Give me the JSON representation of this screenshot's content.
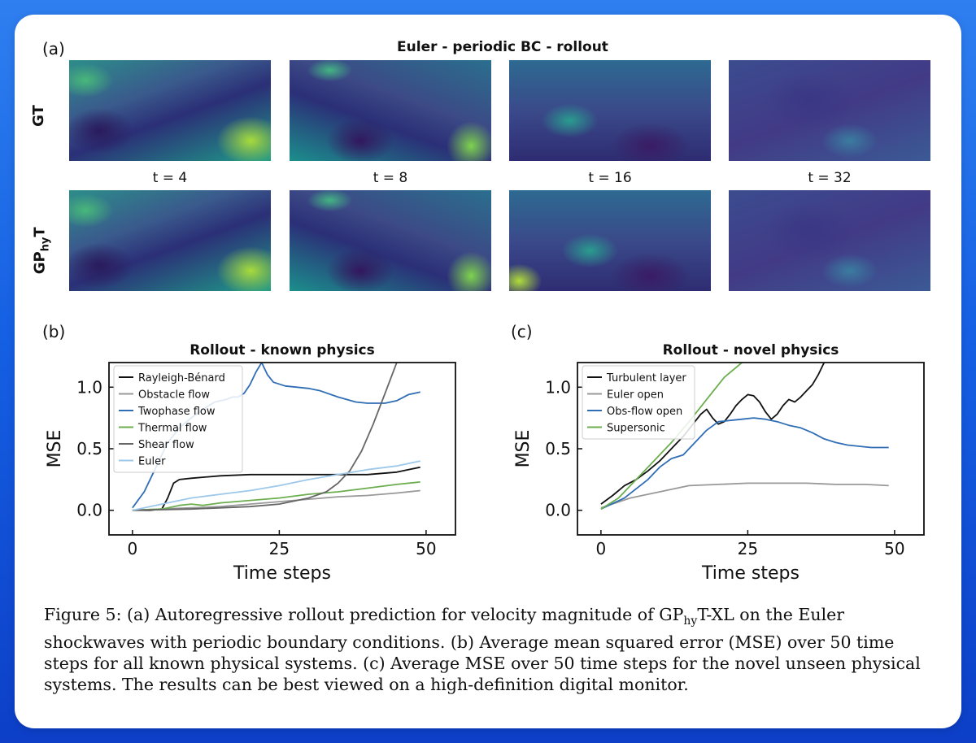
{
  "panel_a": {
    "letter": "(a)",
    "title": "Euler - periodic BC - rollout",
    "row_gt": "GT",
    "row_pred_main": "GP",
    "row_pred_sub": "hy",
    "row_pred_tail": "T",
    "time_labels": [
      "t = 4",
      "t = 8",
      "t = 16",
      "t = 32"
    ]
  },
  "panel_b": {
    "letter": "(b)"
  },
  "panel_c": {
    "letter": "(c)"
  },
  "chart_data": [
    {
      "type": "line",
      "title": "Rollout - known physics",
      "xlabel": "Time steps",
      "ylabel": "MSE",
      "xlim": [
        -4,
        55
      ],
      "ylim": [
        -0.2,
        1.2
      ],
      "xticks": [
        0,
        25,
        50
      ],
      "yticks": [
        0.0,
        0.5,
        1.0
      ],
      "ytick_labels": [
        "0.0",
        "0.5",
        "1.0"
      ],
      "legend_position": "top-left",
      "series": [
        {
          "name": "Rayleigh-Bénard",
          "color": "#111111",
          "x": [
            0,
            3,
            5,
            6,
            7,
            8,
            10,
            15,
            20,
            25,
            30,
            35,
            40,
            45,
            49
          ],
          "y": [
            0,
            0,
            0.01,
            0.1,
            0.22,
            0.25,
            0.26,
            0.28,
            0.29,
            0.29,
            0.29,
            0.29,
            0.29,
            0.31,
            0.35
          ]
        },
        {
          "name": "Obstacle flow",
          "color": "#999999",
          "x": [
            0,
            5,
            10,
            15,
            20,
            25,
            30,
            35,
            40,
            45,
            49
          ],
          "y": [
            0,
            0.01,
            0.02,
            0.03,
            0.05,
            0.07,
            0.09,
            0.11,
            0.12,
            0.14,
            0.16
          ]
        },
        {
          "name": "Twophase flow",
          "color": "#2f6db5",
          "x": [
            0,
            2,
            4,
            6,
            8,
            10,
            12,
            14,
            16,
            17,
            18,
            19,
            20,
            21,
            22,
            23,
            24,
            26,
            28,
            30,
            32,
            35,
            38,
            40,
            43,
            45,
            47,
            49
          ],
          "y": [
            0.02,
            0.15,
            0.35,
            0.55,
            0.67,
            0.75,
            0.82,
            0.88,
            0.9,
            0.92,
            0.92,
            0.95,
            1.02,
            1.12,
            1.2,
            1.1,
            1.04,
            1.01,
            1.0,
            0.99,
            0.97,
            0.92,
            0.88,
            0.87,
            0.87,
            0.89,
            0.94,
            0.96
          ]
        },
        {
          "name": "Thermal flow",
          "color": "#6cae4f",
          "x": [
            0,
            5,
            8,
            10,
            12,
            15,
            20,
            25,
            30,
            35,
            40,
            45,
            49
          ],
          "y": [
            0,
            0.01,
            0.04,
            0.05,
            0.04,
            0.06,
            0.08,
            0.1,
            0.13,
            0.15,
            0.18,
            0.21,
            0.23
          ]
        },
        {
          "name": "Shear flow",
          "color": "#666666",
          "x": [
            0,
            10,
            20,
            25,
            30,
            33,
            35,
            37,
            39,
            41,
            43,
            45
          ],
          "y": [
            0,
            0.01,
            0.03,
            0.05,
            0.1,
            0.15,
            0.22,
            0.32,
            0.48,
            0.7,
            0.95,
            1.2
          ]
        },
        {
          "name": "Euler",
          "color": "#9dc8ea",
          "x": [
            0,
            5,
            10,
            15,
            20,
            25,
            30,
            35,
            40,
            45,
            49
          ],
          "y": [
            0,
            0.05,
            0.1,
            0.13,
            0.16,
            0.2,
            0.25,
            0.29,
            0.33,
            0.36,
            0.4
          ]
        }
      ]
    },
    {
      "type": "line",
      "title": "Rollout - novel physics",
      "xlabel": "Time steps",
      "ylabel": "MSE",
      "xlim": [
        -4,
        55
      ],
      "ylim": [
        -0.2,
        1.2
      ],
      "xticks": [
        0,
        25,
        50
      ],
      "yticks": [
        0.0,
        0.5,
        1.0
      ],
      "ytick_labels": [
        "0.0",
        "0.5",
        "1.0"
      ],
      "legend_position": "top-left",
      "series": [
        {
          "name": "Turbulent layer",
          "color": "#111111",
          "x": [
            0,
            2,
            4,
            6,
            8,
            10,
            12,
            14,
            16,
            17,
            18,
            19,
            20,
            21,
            22,
            23,
            24,
            25,
            26,
            27,
            28,
            29,
            30,
            31,
            32,
            33,
            34,
            35,
            36,
            37,
            38
          ],
          "y": [
            0.05,
            0.12,
            0.2,
            0.25,
            0.32,
            0.4,
            0.5,
            0.6,
            0.72,
            0.78,
            0.82,
            0.75,
            0.7,
            0.72,
            0.78,
            0.85,
            0.9,
            0.94,
            0.93,
            0.88,
            0.8,
            0.74,
            0.78,
            0.85,
            0.9,
            0.88,
            0.92,
            0.97,
            1.02,
            1.1,
            1.2
          ]
        },
        {
          "name": "Euler open",
          "color": "#999999",
          "x": [
            0,
            5,
            10,
            15,
            20,
            25,
            30,
            35,
            40,
            45,
            49
          ],
          "y": [
            0.02,
            0.1,
            0.15,
            0.2,
            0.21,
            0.22,
            0.22,
            0.22,
            0.21,
            0.21,
            0.2
          ]
        },
        {
          "name": "Obs-flow open",
          "color": "#2f6db5",
          "x": [
            0,
            4,
            8,
            10,
            12,
            14,
            16,
            18,
            20,
            22,
            24,
            26,
            28,
            30,
            32,
            34,
            36,
            38,
            40,
            42,
            44,
            46,
            49
          ],
          "y": [
            0.01,
            0.1,
            0.25,
            0.35,
            0.42,
            0.45,
            0.55,
            0.65,
            0.72,
            0.73,
            0.74,
            0.75,
            0.74,
            0.72,
            0.69,
            0.67,
            0.63,
            0.58,
            0.55,
            0.53,
            0.52,
            0.51,
            0.51
          ]
        },
        {
          "name": "Supersonic",
          "color": "#6cae4f",
          "x": [
            0,
            3,
            6,
            9,
            12,
            15,
            18,
            21,
            24
          ],
          "y": [
            0.01,
            0.1,
            0.25,
            0.4,
            0.55,
            0.72,
            0.9,
            1.08,
            1.2
          ]
        }
      ]
    }
  ],
  "caption": {
    "prefix": "Figure 5: (a) Autoregressive rollout prediction for velocity magnitude of GP",
    "sub": "hy",
    "suffix": "T-XL on the Euler shockwaves with periodic boundary conditions. (b) Average mean squared error (MSE) over 50 time steps for all known physical systems. (c) Average MSE over 50 time steps for the novel unseen physical systems. The results can be best viewed on a high-definition digital monitor."
  }
}
